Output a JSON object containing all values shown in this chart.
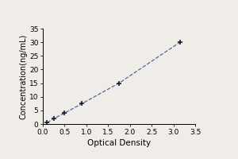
{
  "x": [
    0.1,
    0.25,
    0.5,
    0.9,
    1.75,
    3.15
  ],
  "y": [
    0.5,
    2.0,
    4.0,
    7.5,
    15.0,
    30.0
  ],
  "xlabel": "Optical Density",
  "ylabel": "Concentration(ng/mL)",
  "xlim": [
    0,
    3.5
  ],
  "ylim": [
    0,
    35
  ],
  "xticks": [
    0,
    0.5,
    1,
    1.5,
    2,
    2.5,
    3,
    3.5
  ],
  "yticks": [
    0,
    5,
    10,
    15,
    20,
    25,
    30,
    35
  ],
  "line_color": "#4a6a9a",
  "marker_color": "#1a1a2a",
  "line_style": "--",
  "marker_size": 5,
  "line_width": 0.9,
  "xlabel_fontsize": 7.5,
  "ylabel_fontsize": 7,
  "tick_fontsize": 6.5,
  "background_color": "#f0ede8"
}
